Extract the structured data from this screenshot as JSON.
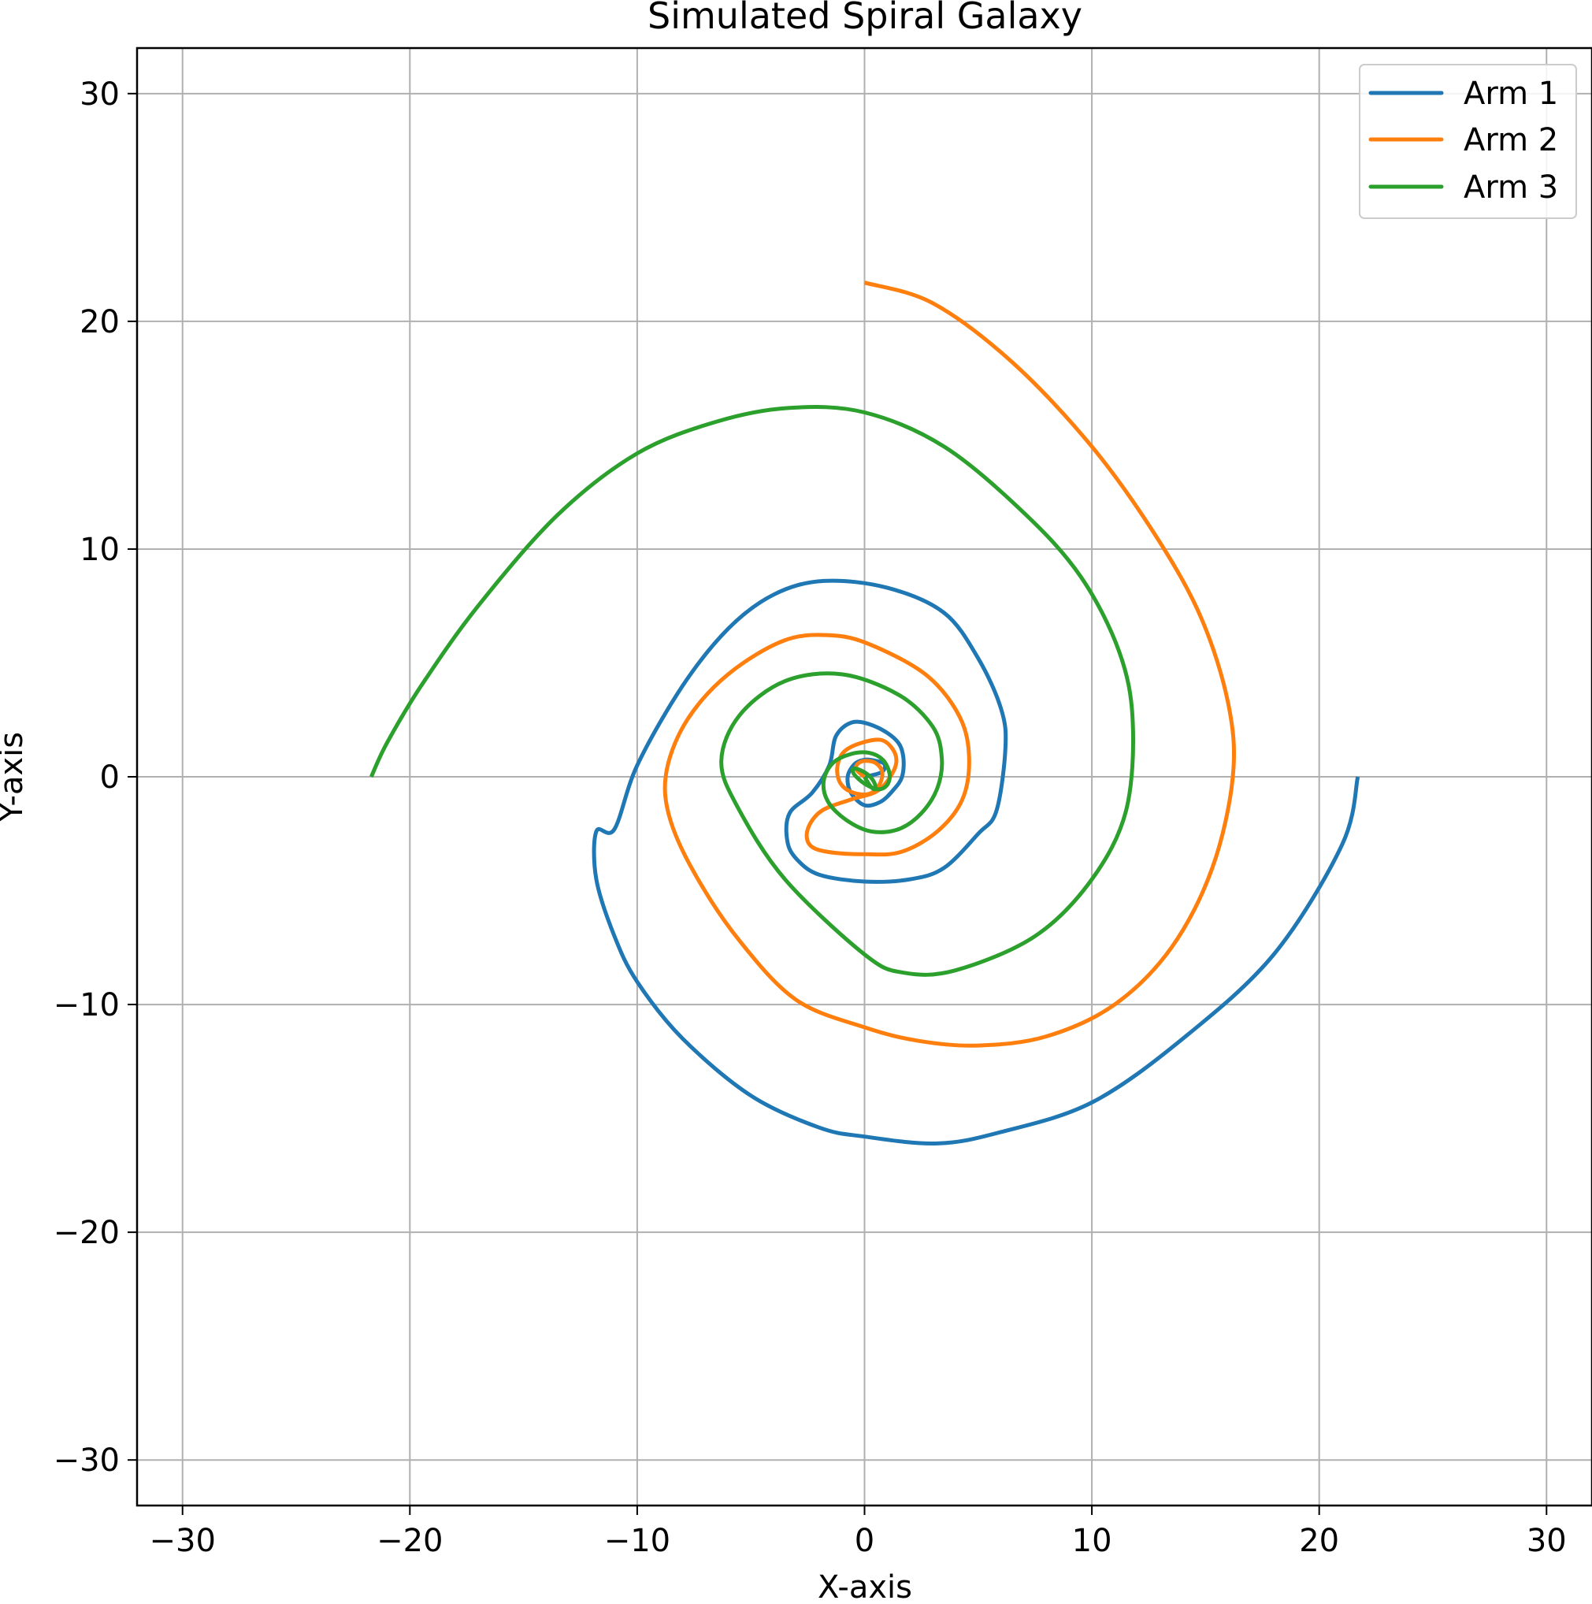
{
  "chart_data": {
    "type": "line",
    "title": "Simulated Spiral Galaxy",
    "xlabel": "X-axis",
    "ylabel": "Y-axis",
    "xlim": [
      -32,
      32
    ],
    "ylim": [
      -32,
      32
    ],
    "xticks": [
      -30,
      -20,
      -10,
      0,
      10,
      20,
      30
    ],
    "yticks": [
      -30,
      -20,
      -10,
      0,
      10,
      20,
      30
    ],
    "x_tick_labels": [
      "−30",
      "−20",
      "−10",
      "0",
      "10",
      "20",
      "30"
    ],
    "y_tick_labels": [
      "−30",
      "−20",
      "−10",
      "0",
      "10",
      "20",
      "30"
    ],
    "grid": true,
    "legend_position": "top-right",
    "series": [
      {
        "name": "Arm 1",
        "color": "#1f77b4",
        "x": [
          0,
          0.75,
          0.88,
          0.5,
          0,
          -0.45,
          -0.74,
          -0.6,
          0,
          0.7,
          1.25,
          1.65,
          1.7,
          1.4,
          0.5,
          -0.5,
          -1.25,
          -1.55,
          -2.3,
          -3.3,
          -3.4,
          -3.0,
          -2.0,
          0,
          2.0,
          3.5,
          5.0,
          5.8,
          6.2,
          6.0,
          5.0,
          3.5,
          1.0,
          -1.8,
          -4.0,
          -6.0,
          -8.0,
          -10.0,
          -11.0,
          -11.8,
          -11.8,
          -11.0,
          -10.0,
          -8.0,
          -5.0,
          -2.0,
          0,
          3.2,
          6.0,
          10.0,
          14.0,
          18.0,
          21.0,
          21.7
        ],
        "y": [
          0,
          0.2,
          0.55,
          0.7,
          0.75,
          0.55,
          0,
          -0.7,
          -1.25,
          -1.1,
          -0.6,
          0,
          0.9,
          1.6,
          2.2,
          2.4,
          1.8,
          0.5,
          -0.7,
          -1.6,
          -2.8,
          -3.6,
          -4.3,
          -4.6,
          -4.5,
          -4.0,
          -2.5,
          -1.5,
          1.3,
          3.0,
          5.2,
          7.2,
          8.3,
          8.6,
          8.0,
          6.5,
          4.0,
          0.5,
          -2.3,
          -2.4,
          -4.5,
          -7.0,
          -9.0,
          -11.5,
          -14.0,
          -15.4,
          -15.8,
          -16.1,
          -15.6,
          -14.3,
          -11.5,
          -7.8,
          -3.0,
          0
        ]
      },
      {
        "name": "Arm 2",
        "color": "#ff7f0e",
        "x": [
          0,
          -0.35,
          -0.32,
          0,
          0.5,
          0.78,
          0.65,
          0.2,
          -0.5,
          -1.05,
          -1.2,
          -0.9,
          -0.1,
          0.8,
          1.35,
          1.3,
          0.6,
          -0.6,
          -1.9,
          -2.5,
          -2.4,
          -1.6,
          0,
          1.6,
          3.2,
          4.3,
          4.6,
          4.2,
          2.8,
          0.5,
          -1.3,
          -3.5,
          -6.0,
          -7.8,
          -8.7,
          -8.6,
          -7.5,
          -5.5,
          -3.0,
          0,
          2.4,
          5.0,
          8.0,
          11.0,
          13.5,
          15.3,
          16.2,
          16.0,
          14.8,
          12.8,
          10.0,
          6.5,
          3.0,
          0
        ],
        "y": [
          0,
          0.3,
          0.55,
          0.7,
          0.6,
          0.2,
          -0.35,
          -0.75,
          -0.7,
          -0.3,
          0.4,
          1.1,
          1.5,
          1.6,
          1.0,
          0.3,
          -0.6,
          -1.0,
          -1.5,
          -2.3,
          -3.0,
          -3.3,
          -3.4,
          -3.3,
          -2.4,
          -1.0,
          0.8,
          2.6,
          4.4,
          5.7,
          6.2,
          6.0,
          4.5,
          2.5,
          0.3,
          -1.7,
          -4.2,
          -7.2,
          -9.8,
          -11.0,
          -11.6,
          -11.8,
          -11.4,
          -10.0,
          -7.5,
          -4.0,
          0,
          3.2,
          7.0,
          10.6,
          14.5,
          18.2,
          20.8,
          21.7
        ]
      },
      {
        "name": "Arm 3",
        "color": "#2ca02c",
        "x": [
          0,
          0.25,
          0.45,
          0.45,
          0.2,
          -0.2,
          -0.5,
          -0.45,
          0,
          0.6,
          1.0,
          1.1,
          0.8,
          0.2,
          -0.6,
          -1.4,
          -1.8,
          -1.6,
          -0.8,
          0.3,
          1.5,
          2.5,
          3.2,
          3.4,
          3.0,
          1.5,
          -1.0,
          -3.5,
          -5.5,
          -6.3,
          -5.6,
          -3.5,
          0,
          1.7,
          4.0,
          7.5,
          10.0,
          11.5,
          11.8,
          11.2,
          9.5,
          7.0,
          3.5,
          0,
          -3.3,
          -6.5,
          -10.0,
          -13.5,
          -17.0,
          -19.5,
          -21.0,
          -21.7
        ],
        "y": [
          0,
          -0.4,
          -0.55,
          -0.3,
          0.05,
          0.3,
          0.35,
          0.1,
          -0.3,
          -0.55,
          -0.35,
          0.15,
          0.75,
          1.05,
          1.0,
          0.6,
          -0.2,
          -1.1,
          -1.9,
          -2.4,
          -2.3,
          -1.6,
          -0.5,
          0.8,
          2.2,
          3.6,
          4.5,
          4.2,
          2.7,
          0.7,
          -1.3,
          -4.5,
          -7.8,
          -8.6,
          -8.5,
          -7.0,
          -4.5,
          -1.5,
          2.4,
          5.5,
          8.8,
          11.6,
          14.5,
          16.0,
          16.2,
          15.6,
          14.2,
          11.5,
          7.5,
          4.0,
          1.5,
          0
        ]
      }
    ]
  }
}
